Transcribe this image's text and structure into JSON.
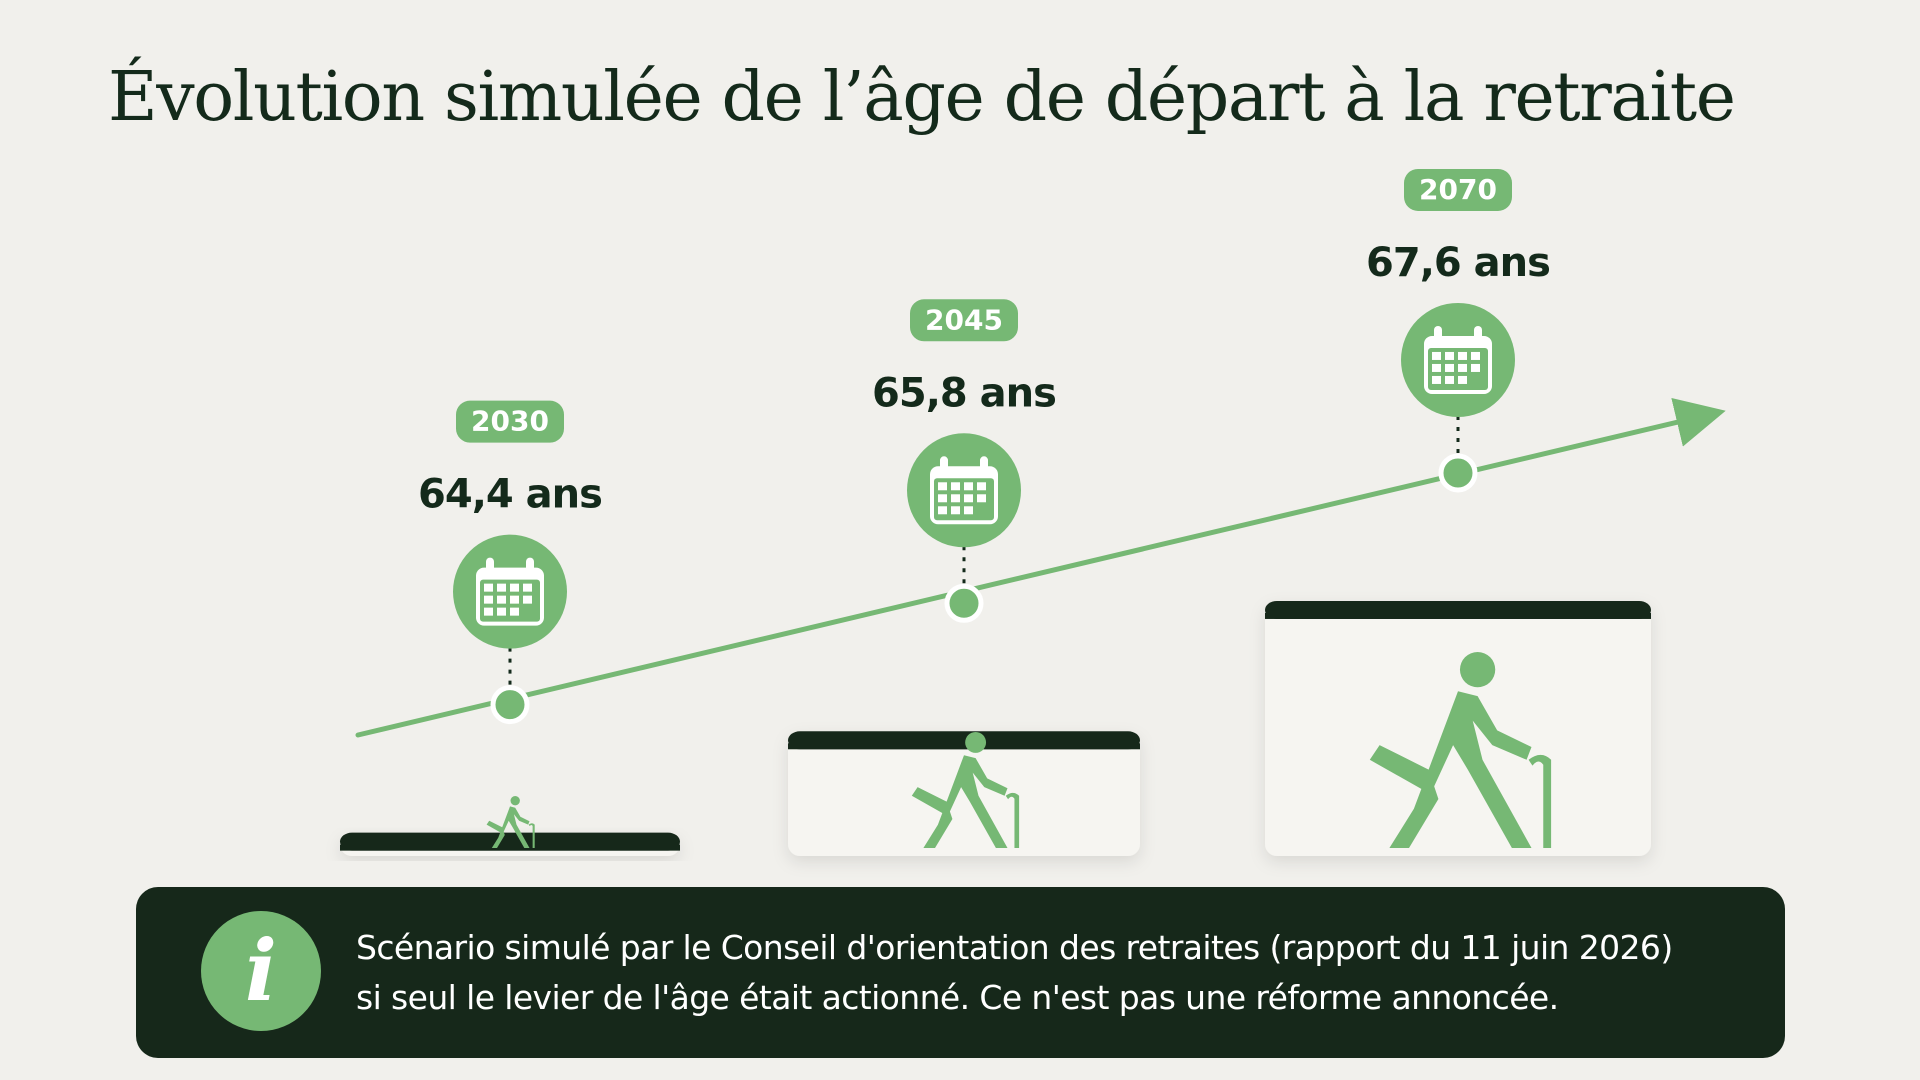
{
  "chart_data": {
    "type": "line",
    "title": "Évolution simulée de l’âge de départ à la retraite",
    "x": [
      "2030",
      "2045",
      "2070"
    ],
    "values": [
      64.4,
      65.8,
      67.6
    ],
    "value_labels": [
      "64,4 ans",
      "65,8 ans",
      "67,6 ans"
    ],
    "xlabel": "",
    "ylabel": "",
    "grid": false
  },
  "colors": {
    "accent": "#76b874",
    "dark": "#16281a",
    "background": "#f1f0ec",
    "text": "#142a1b"
  },
  "icons": {
    "point": "calendar-icon",
    "pedestal": "elderly-person-with-cane-icon",
    "note": "info-icon"
  },
  "note": {
    "line1": "Scénario simulé par le Conseil d'orientation des retraites (rapport du 11 juin 2026)",
    "line2": "si seul le levier de l'âge était actionné. Ce n'est pas une réforme annoncée."
  }
}
